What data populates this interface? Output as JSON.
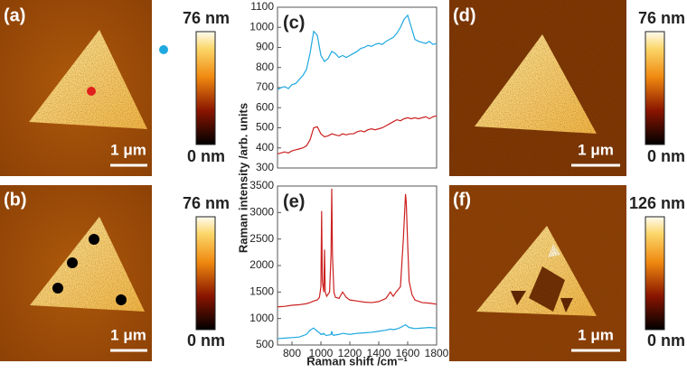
{
  "images": [
    {
      "label": "(a)",
      "scale_bar": "1 μm",
      "colorbar_max": "76 nm",
      "colorbar_min": "0 nm"
    },
    {
      "label": "(b)",
      "scale_bar": "1 μm",
      "colorbar_max": "76 nm",
      "colorbar_min": "0 nm"
    },
    {
      "label": "(d)",
      "scale_bar": "1 μm",
      "colorbar_max": "76 nm",
      "colorbar_min": "0 nm"
    },
    {
      "label": "(f)",
      "scale_bar": "1 μm",
      "colorbar_max": "126 nm",
      "colorbar_min": "0 nm"
    }
  ],
  "ylabel": "Raman intensity /arb. units",
  "chart_data": [
    {
      "type": "line",
      "label": "(c)",
      "x": [
        700,
        725,
        750,
        775,
        800,
        825,
        850,
        875,
        900,
        925,
        950,
        975,
        1000,
        1025,
        1050,
        1075,
        1100,
        1125,
        1150,
        1175,
        1200,
        1225,
        1250,
        1275,
        1300,
        1325,
        1350,
        1375,
        1400,
        1425,
        1450,
        1475,
        1500,
        1525,
        1550,
        1575,
        1600,
        1625,
        1650,
        1675,
        1700,
        1725,
        1750,
        1775,
        1800
      ],
      "series": [
        {
          "color": "#1ea8e0",
          "values": [
            690,
            700,
            705,
            695,
            715,
            720,
            740,
            760,
            790,
            870,
            980,
            960,
            860,
            830,
            845,
            880,
            870,
            850,
            860,
            850,
            860,
            870,
            880,
            895,
            900,
            910,
            905,
            915,
            920,
            915,
            930,
            940,
            950,
            970,
            1000,
            1040,
            1060,
            1000,
            940,
            930,
            925,
            920,
            930,
            915,
            920
          ]
        },
        {
          "color": "#cc2020",
          "values": [
            370,
            375,
            380,
            375,
            385,
            390,
            395,
            400,
            410,
            440,
            500,
            505,
            470,
            455,
            460,
            470,
            465,
            460,
            470,
            465,
            470,
            470,
            480,
            485,
            480,
            490,
            495,
            490,
            495,
            500,
            510,
            520,
            530,
            540,
            535,
            545,
            550,
            545,
            550,
            545,
            550,
            555,
            545,
            555,
            560
          ]
        }
      ],
      "xlim": [
        700,
        1800
      ],
      "ylim": [
        300,
        1100
      ],
      "yticks": [
        300,
        400,
        500,
        600,
        700,
        800,
        900,
        1000,
        1100
      ]
    },
    {
      "type": "line",
      "label": "(e)",
      "xlabel": "Raman shift /cm⁻¹",
      "x": [
        700,
        750,
        800,
        850,
        900,
        925,
        950,
        975,
        990,
        1000,
        1005,
        1010,
        1020,
        1025,
        1030,
        1040,
        1060,
        1070,
        1075,
        1080,
        1090,
        1100,
        1125,
        1150,
        1175,
        1200,
        1250,
        1300,
        1350,
        1400,
        1450,
        1480,
        1500,
        1520,
        1550,
        1570,
        1585,
        1590,
        1600,
        1610,
        1630,
        1650,
        1700,
        1750,
        1800
      ],
      "series": [
        {
          "color": "#cc2020",
          "values": [
            1220,
            1230,
            1250,
            1260,
            1280,
            1300,
            1330,
            1350,
            1400,
            1600,
            3030,
            1700,
            1500,
            2300,
            1500,
            1420,
            1500,
            2200,
            3450,
            2200,
            1500,
            1400,
            1380,
            1500,
            1400,
            1350,
            1330,
            1310,
            1300,
            1320,
            1380,
            1500,
            1420,
            1500,
            1600,
            2500,
            3350,
            3200,
            2400,
            1700,
            1450,
            1350,
            1300,
            1290,
            1270
          ]
        },
        {
          "color": "#1ea8e0",
          "values": [
            620,
            630,
            640,
            650,
            700,
            780,
            820,
            760,
            730,
            700,
            710,
            700,
            720,
            700,
            690,
            680,
            690,
            700,
            760,
            700,
            680,
            690,
            700,
            720,
            710,
            700,
            720,
            730,
            740,
            760,
            780,
            800,
            790,
            800,
            830,
            860,
            880,
            870,
            850,
            830,
            820,
            810,
            820,
            830,
            820
          ]
        }
      ],
      "xlim": [
        700,
        1800
      ],
      "ylim": [
        500,
        3500
      ],
      "xticks": [
        800,
        1000,
        1200,
        1400,
        1600,
        1800
      ],
      "yticks": [
        500,
        1000,
        1500,
        2000,
        2500,
        3000,
        3500
      ]
    }
  ]
}
